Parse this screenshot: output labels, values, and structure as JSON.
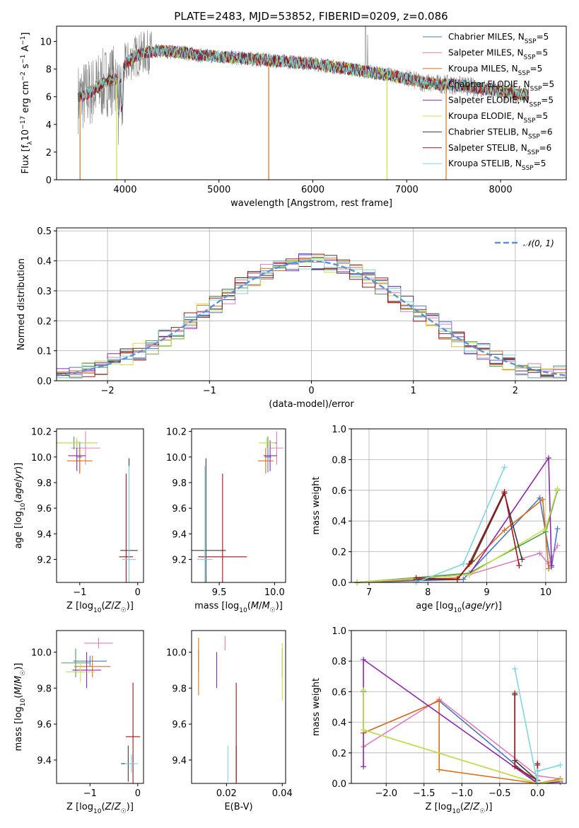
{
  "figure_title": "PLATE=2483, MJD=53852, FIBERID=0209, z=0.086",
  "palette": {
    "Chabrier MILES": "#4a78c0",
    "Salpeter MILES": "#e07cb8",
    "Kroupa MILES": "#d9711a",
    "Chabrier ELODIE": "#4e9a56",
    "Salpeter ELODIE": "#8c27a8",
    "Kroupa ELODIE": "#c8e04a",
    "Chabrier STELIB": "#3b3b3b",
    "Salpeter STELIB": "#a01414",
    "Kroupa STELIB": "#7fd6e0",
    "normal": "#5b8fd6",
    "spectrum": "#7f7f7f"
  },
  "chart_data": [
    {
      "id": "spectrum",
      "type": "line",
      "title": "PLATE=2483, MJD=53852, FIBERID=0209, z=0.086",
      "xlabel": "wavelength [Angstrom, rest frame]",
      "ylabel": "Flux [f_λ 10^-17 erg cm^-2 s^-1 A^-1]",
      "xlim": [
        3270,
        8700
      ],
      "ylim": [
        0,
        11.1
      ],
      "xticks": [
        4000,
        5000,
        6000,
        7000,
        8000
      ],
      "yticks": [
        0,
        2,
        4,
        6,
        8,
        10
      ],
      "grid": false,
      "legend_position": "top-right",
      "legend": [
        "Chabrier MILES, N_SSP=5",
        "Salpeter MILES, N_SSP=5",
        "Kroupa MILES, N_SSP=5",
        "Chabrier ELODIE, N_SSP=5",
        "Salpeter ELODIE, N_SSP=5",
        "Kroupa ELODIE, N_SSP=5",
        "Chabrier STELIB, N_SSP=6",
        "Salpeter STELIB, N_SSP=6",
        "Kroupa STELIB, N_SSP=5"
      ],
      "continuum": {
        "x": [
          3500,
          3650,
          3800,
          3900,
          3950,
          4000,
          4100,
          4200,
          4400,
          4600,
          4800,
          5000,
          5200,
          5400,
          5600,
          5800,
          6000,
          6200,
          6400,
          6600,
          6800,
          7000,
          7200,
          7400,
          7600,
          7800,
          8000,
          8200,
          8400
        ],
        "y": [
          5.9,
          6.4,
          7.1,
          7.3,
          6.8,
          8.3,
          8.9,
          9.2,
          9.3,
          9.2,
          9.0,
          8.9,
          8.8,
          8.7,
          8.6,
          8.5,
          8.4,
          8.2,
          8.0,
          7.8,
          7.6,
          7.3,
          7.0,
          6.9,
          6.8,
          6.6,
          6.4,
          6.2,
          6.0
        ]
      }
    },
    {
      "id": "residuals",
      "type": "histogram",
      "xlabel": "(data-model)/error",
      "ylabel": "Normed distribution",
      "xlim": [
        -2.5,
        2.5
      ],
      "ylim": [
        0,
        0.51
      ],
      "xticks": [
        -2,
        -1,
        0,
        1,
        2
      ],
      "yticks": [
        0.0,
        0.1,
        0.2,
        0.3,
        0.4,
        0.5
      ],
      "grid": true,
      "legend_position": "top-right",
      "legend": [
        "𝒩(0, 1)"
      ],
      "bins": 40,
      "bin_width": 0.125
    },
    {
      "id": "age_vs_Z",
      "type": "errorbar",
      "xlabel": "Z [log10(Z/Z☉)]",
      "ylabel": "age [log10(age/yr)]",
      "xlim": [
        -1.4,
        0.1
      ],
      "ylim": [
        9.02,
        10.22
      ],
      "xticks": [
        -1,
        0
      ],
      "yticks": [
        9.2,
        9.4,
        9.6,
        9.8,
        10.0,
        10.2
      ],
      "points": [
        {
          "model": "Chabrier MILES",
          "x": -1.0,
          "y": 10.0,
          "xerr": 0.04,
          "yerr": 0.12
        },
        {
          "model": "Salpeter MILES",
          "x": -0.9,
          "y": 10.07,
          "xerr": 0.25,
          "yerr": 0.13
        },
        {
          "model": "Kroupa MILES",
          "x": -1.0,
          "y": 9.97,
          "xerr": 0.22,
          "yerr": 0.1
        },
        {
          "model": "Chabrier ELODIE",
          "x": -1.1,
          "y": 10.11,
          "xerr": 0.4,
          "yerr": 0.05
        },
        {
          "model": "Salpeter ELODIE",
          "x": -1.05,
          "y": 10.01,
          "xerr": 0.15,
          "yerr": 0.12
        },
        {
          "model": "Kroupa ELODIE",
          "x": -1.05,
          "y": 10.11,
          "xerr": 0.34,
          "yerr": 0.04
        },
        {
          "model": "Chabrier STELIB",
          "x": -0.15,
          "y": 9.27,
          "xerr": 0.15,
          "yerr": 0.72
        },
        {
          "model": "Salpeter STELIB",
          "x": -0.2,
          "y": 9.22,
          "xerr": 0.12,
          "yerr": 0.65
        },
        {
          "model": "Kroupa STELIB",
          "x": -0.15,
          "y": 9.2,
          "xerr": 0.12,
          "yerr": 0.73
        }
      ]
    },
    {
      "id": "age_vs_mass",
      "type": "errorbar",
      "xlabel": "mass [log10(M/M☉)]",
      "ylabel": "",
      "xlim": [
        9.25,
        10.1
      ],
      "ylim": [
        9.02,
        10.22
      ],
      "xticks": [
        9.5,
        10.0
      ],
      "yticks": [
        9.2,
        9.4,
        9.6,
        9.8,
        10.0,
        10.2
      ],
      "points": [
        {
          "model": "Chabrier MILES",
          "x": 9.94,
          "y": 10.0,
          "xerr": 0.03,
          "yerr": 0.12
        },
        {
          "model": "Salpeter MILES",
          "x": 10.02,
          "y": 10.07,
          "xerr": 0.06,
          "yerr": 0.13
        },
        {
          "model": "Kroupa MILES",
          "x": 9.92,
          "y": 9.97,
          "xerr": 0.07,
          "yerr": 0.1
        },
        {
          "model": "Chabrier ELODIE",
          "x": 9.94,
          "y": 10.11,
          "xerr": 0.08,
          "yerr": 0.05
        },
        {
          "model": "Salpeter ELODIE",
          "x": 9.96,
          "y": 10.01,
          "xerr": 0.06,
          "yerr": 0.12
        },
        {
          "model": "Kroupa ELODIE",
          "x": 9.93,
          "y": 10.11,
          "xerr": 0.07,
          "yerr": 0.04
        },
        {
          "model": "Chabrier STELIB",
          "x": 9.38,
          "y": 9.27,
          "xerr": 0.18,
          "yerr": 0.72
        },
        {
          "model": "Salpeter STELIB",
          "x": 9.53,
          "y": 9.22,
          "xerr": 0.22,
          "yerr": 0.65
        },
        {
          "model": "Kroupa STELIB",
          "x": 9.37,
          "y": 9.2,
          "xerr": 0.07,
          "yerr": 0.73
        }
      ]
    },
    {
      "id": "weight_vs_age",
      "type": "line",
      "xlabel": "age [log10(age/yr)]",
      "ylabel": "mass weight",
      "xlim": [
        6.7,
        10.35
      ],
      "ylim": [
        0,
        1
      ],
      "xticks": [
        7,
        8,
        9,
        10
      ],
      "yticks": [
        0.0,
        0.2,
        0.4,
        0.6,
        0.8,
        1.0
      ],
      "grid": true,
      "series": [
        {
          "name": "Chabrier MILES",
          "x": [
            6.8,
            8.6,
            9.9,
            10.1,
            10.2
          ],
          "y": [
            0.0,
            0.02,
            0.55,
            0.1,
            0.35
          ]
        },
        {
          "name": "Salpeter MILES",
          "x": [
            6.8,
            8.7,
            9.9,
            10.05,
            10.2
          ],
          "y": [
            0.0,
            0.05,
            0.19,
            0.12,
            0.24
          ]
        },
        {
          "name": "Kroupa MILES",
          "x": [
            6.8,
            8.5,
            9.3,
            9.95,
            10.05
          ],
          "y": [
            0.0,
            0.03,
            0.34,
            0.54,
            0.09
          ]
        },
        {
          "name": "Chabrier ELODIE",
          "x": [
            6.8,
            8.7,
            10.0,
            10.2
          ],
          "y": [
            0.0,
            0.06,
            0.33,
            0.6
          ]
        },
        {
          "name": "Salpeter ELODIE",
          "x": [
            6.8,
            8.7,
            10.05,
            10.1
          ],
          "y": [
            0.0,
            0.05,
            0.81,
            0.11
          ]
        },
        {
          "name": "Kroupa ELODIE",
          "x": [
            6.8,
            8.7,
            10.0,
            10.2
          ],
          "y": [
            0.0,
            0.05,
            0.35,
            0.61
          ]
        },
        {
          "name": "Chabrier STELIB",
          "x": [
            7.8,
            8.5,
            8.75,
            9.3,
            9.6
          ],
          "y": [
            0.02,
            0.02,
            0.14,
            0.58,
            0.15
          ]
        },
        {
          "name": "Salpeter STELIB",
          "x": [
            7.8,
            8.5,
            8.7,
            9.3,
            9.55
          ],
          "y": [
            0.03,
            0.02,
            0.12,
            0.59,
            0.11
          ]
        },
        {
          "name": "Kroupa STELIB",
          "x": [
            7.8,
            8.6,
            9.3
          ],
          "y": [
            0.0,
            0.12,
            0.75
          ]
        }
      ]
    },
    {
      "id": "mass_vs_Z",
      "type": "errorbar",
      "xlabel": "Z [log10(Z/Z☉)]",
      "ylabel": "mass [log10(M/M☉)]",
      "xlim": [
        -1.7,
        0.12
      ],
      "ylim": [
        9.27,
        10.12
      ],
      "xticks": [
        -1,
        0
      ],
      "yticks": [
        9.4,
        9.6,
        9.8,
        10.0
      ],
      "points": [
        {
          "model": "Chabrier MILES",
          "x": -1.0,
          "y": 9.95,
          "xerr": 0.35,
          "yerr": 0.03
        },
        {
          "model": "Salpeter MILES",
          "x": -0.82,
          "y": 10.05,
          "xerr": 0.3,
          "yerr": 0.03
        },
        {
          "model": "Kroupa MILES",
          "x": -0.95,
          "y": 9.92,
          "xerr": 0.38,
          "yerr": 0.06
        },
        {
          "model": "Chabrier ELODIE",
          "x": -1.3,
          "y": 9.94,
          "xerr": 0.3,
          "yerr": 0.08
        },
        {
          "model": "Salpeter ELODIE",
          "x": -1.07,
          "y": 9.9,
          "xerr": 0.3,
          "yerr": 0.1
        },
        {
          "model": "Kroupa ELODIE",
          "x": -1.2,
          "y": 9.89,
          "xerr": 0.3,
          "yerr": 0.06
        },
        {
          "model": "Chabrier STELIB",
          "x": -0.2,
          "y": 9.38,
          "xerr": 0.15,
          "yerr": 0.1
        },
        {
          "model": "Salpeter STELIB",
          "x": -0.1,
          "y": 9.53,
          "xerr": 0.15,
          "yerr": 0.3
        },
        {
          "model": "Kroupa STELIB",
          "x": -0.13,
          "y": 9.38,
          "xerr": 0.14,
          "yerr": 0.05
        }
      ]
    },
    {
      "id": "mass_vs_ebv",
      "type": "errorbar",
      "xlabel": "E(B-V)",
      "ylabel": "",
      "xlim": [
        0.0075,
        0.0412
      ],
      "ylim": [
        9.27,
        10.12
      ],
      "xticks": [
        0.02,
        0.04
      ],
      "yticks": [
        9.4,
        9.6,
        9.8,
        10.0
      ],
      "points": [
        {
          "model": "Chabrier MILES",
          "x": 0.01,
          "y": 9.95,
          "xerr": 0.0,
          "yerr": 0.06
        },
        {
          "model": "Salpeter MILES",
          "x": 0.0195,
          "y": 10.05,
          "xerr": 0.0,
          "yerr": 0.04
        },
        {
          "model": "Kroupa MILES",
          "x": 0.01,
          "y": 9.92,
          "xerr": 0.0,
          "yerr": 0.16
        },
        {
          "model": "Chabrier ELODIE",
          "x": 0.04,
          "y": 9.94,
          "xerr": 0.0,
          "yerr": 0.08
        },
        {
          "model": "Salpeter ELODIE",
          "x": 0.0165,
          "y": 9.9,
          "xerr": 0.0,
          "yerr": 0.1
        },
        {
          "model": "Kroupa ELODIE",
          "x": 0.04,
          "y": 9.89,
          "xerr": 0.0,
          "yerr": 0.16
        },
        {
          "model": "Chabrier STELIB",
          "x": 0.0235,
          "y": 9.38,
          "xerr": 0.0,
          "yerr": 0.1
        },
        {
          "model": "Salpeter STELIB",
          "x": 0.0235,
          "y": 9.53,
          "xerr": 0.0,
          "yerr": 0.3
        },
        {
          "model": "Kroupa STELIB",
          "x": 0.0205,
          "y": 9.38,
          "xerr": 0.0,
          "yerr": 0.1
        }
      ]
    },
    {
      "id": "weight_vs_Z",
      "type": "line",
      "xlabel": "Z [log10(Z/Z☉)]",
      "ylabel": "mass weight",
      "xlim": [
        -2.46,
        0.38
      ],
      "ylim": [
        0,
        1
      ],
      "xticks": [
        -2.0,
        -1.5,
        -1.0,
        -0.5,
        0.0
      ],
      "yticks": [
        0.0,
        0.2,
        0.4,
        0.6,
        0.8,
        1.0
      ],
      "grid": true,
      "series": [
        {
          "name": "Chabrier MILES",
          "x": [
            -2.3,
            -1.3,
            0.0,
            0.3
          ],
          "y": [
            0.33,
            0.54,
            0.0,
            0.02
          ]
        },
        {
          "name": "Salpeter MILES",
          "x": [
            -2.3,
            -1.3,
            0.0,
            0.3
          ],
          "y": [
            0.24,
            0.55,
            0.05,
            0.03
          ]
        },
        {
          "name": "Kroupa MILES",
          "x": [
            -2.3,
            -1.3,
            -1.3,
            0.0,
            0.3
          ],
          "y": [
            0.33,
            0.54,
            0.09,
            0.0,
            0.03
          ]
        },
        {
          "name": "Chabrier ELODIE",
          "x": [
            -2.3,
            -2.3,
            0.0,
            0.3
          ],
          "y": [
            0.6,
            0.35,
            0.0,
            0.02
          ]
        },
        {
          "name": "Salpeter ELODIE",
          "x": [
            -2.3,
            -2.3,
            0.0,
            0.3
          ],
          "y": [
            0.11,
            0.81,
            0.0,
            0.01
          ]
        },
        {
          "name": "Kroupa ELODIE",
          "x": [
            -2.3,
            -2.3,
            0.0,
            0.3
          ],
          "y": [
            0.61,
            0.35,
            0.0,
            0.02
          ]
        },
        {
          "name": "Chabrier STELIB",
          "x": [
            -0.3,
            -0.3,
            0.0,
            0.0
          ],
          "y": [
            0.58,
            0.15,
            0.02,
            0.12
          ]
        },
        {
          "name": "Salpeter STELIB",
          "x": [
            -0.3,
            -0.3,
            0.0,
            0.0
          ],
          "y": [
            0.59,
            0.11,
            0.02,
            0.13
          ]
        },
        {
          "name": "Kroupa STELIB",
          "x": [
            -0.3,
            0.0,
            0.0,
            0.3
          ],
          "y": [
            0.75,
            0.0,
            0.08,
            0.12
          ]
        }
      ]
    }
  ]
}
